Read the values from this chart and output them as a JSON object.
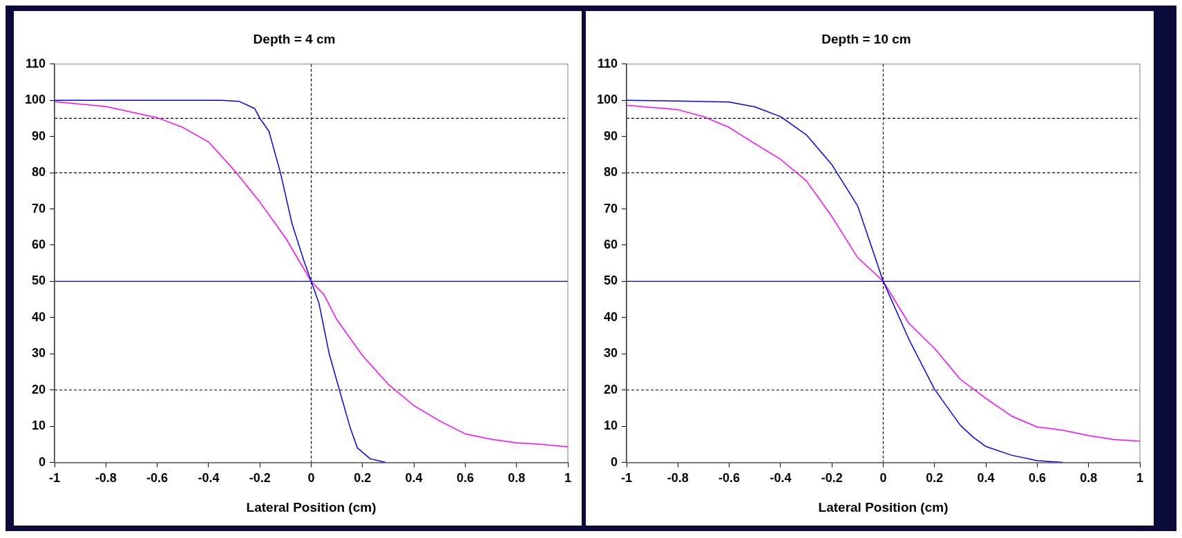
{
  "chart_data": [
    {
      "type": "line",
      "title": "Depth = 4 cm",
      "xlabel": "Lateral Position (cm)",
      "xlim": [
        -1,
        1
      ],
      "xticks": [
        -1,
        -0.8,
        -0.6,
        -0.4,
        -0.2,
        0,
        0.2,
        0.4,
        0.6,
        0.8,
        1
      ],
      "ylim": [
        0,
        110
      ],
      "yticks": [
        0,
        10,
        20,
        30,
        40,
        50,
        60,
        70,
        80,
        90,
        100,
        110
      ],
      "grid": false,
      "legend": false,
      "marker": "none",
      "line_style": "solid",
      "ref_lines": [
        {
          "axis": "y",
          "value": 95,
          "color": "#000000",
          "line_style": "dashed"
        },
        {
          "axis": "y",
          "value": 80,
          "color": "#000000",
          "line_style": "dashed"
        },
        {
          "axis": "y",
          "value": 50,
          "color": "#000080",
          "line_style": "solid"
        },
        {
          "axis": "y",
          "value": 20,
          "color": "#000000",
          "line_style": "dashed"
        },
        {
          "axis": "x",
          "value": 0,
          "color": "#000000",
          "line_style": "dashed"
        }
      ],
      "series": [
        {
          "color": "#0000ff",
          "x": [
            -1,
            -0.6,
            -0.35,
            -0.28,
            -0.22,
            -0.2,
            -0.165,
            -0.12,
            -0.075,
            -0.03,
            0,
            0.03,
            0.07,
            0.11,
            0.15,
            0.18,
            0.23,
            0.29
          ],
          "values": [
            100,
            100,
            100,
            99.7,
            97.7,
            95,
            91.5,
            80,
            66,
            56,
            50,
            44,
            30,
            20,
            10,
            4,
            1,
            0
          ]
        },
        {
          "color": "#ff00ff",
          "x": [
            -1,
            -0.8,
            -0.6,
            -0.5,
            -0.4,
            -0.3,
            -0.2,
            -0.1,
            0,
            0.05,
            0.1,
            0.2,
            0.3,
            0.4,
            0.5,
            0.6,
            0.7,
            0.8,
            0.9,
            1
          ],
          "values": [
            99.6,
            98.3,
            95.2,
            92.5,
            88.5,
            80.7,
            71.9,
            62,
            50,
            46.3,
            39.4,
            29.5,
            21.6,
            15.7,
            11.5,
            7.9,
            6.4,
            5.4,
            5,
            4.3
          ]
        }
      ]
    },
    {
      "type": "line",
      "title": "Depth = 10 cm",
      "xlabel": "Lateral Position (cm)",
      "xlim": [
        -1,
        1
      ],
      "xticks": [
        -1,
        -0.8,
        -0.6,
        -0.4,
        -0.2,
        0,
        0.2,
        0.4,
        0.6,
        0.8,
        1
      ],
      "ylim": [
        0,
        110
      ],
      "yticks": [
        0,
        10,
        20,
        30,
        40,
        50,
        60,
        70,
        80,
        90,
        100,
        110
      ],
      "grid": false,
      "legend": false,
      "marker": "none",
      "line_style": "solid",
      "ref_lines": [
        {
          "axis": "y",
          "value": 95,
          "color": "#000000",
          "line_style": "dashed"
        },
        {
          "axis": "y",
          "value": 80,
          "color": "#000000",
          "line_style": "dashed"
        },
        {
          "axis": "y",
          "value": 50,
          "color": "#000080",
          "line_style": "solid"
        },
        {
          "axis": "y",
          "value": 20,
          "color": "#000000",
          "line_style": "dashed"
        },
        {
          "axis": "x",
          "value": 0,
          "color": "#000000",
          "line_style": "dashed"
        }
      ],
      "series": [
        {
          "color": "#0000ff",
          "x": [
            -1,
            -0.8,
            -0.6,
            -0.5,
            -0.4,
            -0.3,
            -0.2,
            -0.1,
            0,
            0.1,
            0.2,
            0.3,
            0.35,
            0.4,
            0.5,
            0.6,
            0.7
          ],
          "values": [
            100,
            99.8,
            99.5,
            98.2,
            95.5,
            90.5,
            82.2,
            70.9,
            50,
            34,
            20.2,
            10.3,
            7,
            4.4,
            2,
            0.5,
            0
          ]
        },
        {
          "color": "#ff00ff",
          "x": [
            -1,
            -0.8,
            -0.7,
            -0.6,
            -0.5,
            -0.4,
            -0.3,
            -0.2,
            -0.1,
            0,
            0.1,
            0.2,
            0.3,
            0.4,
            0.5,
            0.6,
            0.7,
            0.8,
            0.9,
            1
          ],
          "values": [
            98.6,
            97.4,
            95.5,
            92.5,
            88,
            83.7,
            77.8,
            67.9,
            56.6,
            50,
            38.4,
            31.5,
            23,
            17.7,
            12.8,
            9.8,
            8.9,
            7.4,
            6.3,
            5.9
          ]
        }
      ]
    }
  ]
}
